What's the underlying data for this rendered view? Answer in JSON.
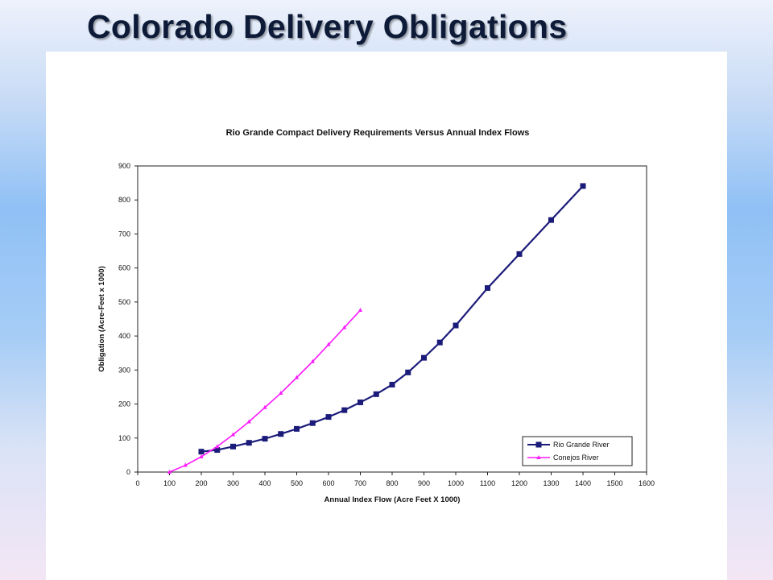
{
  "slide": {
    "title": "Colorado Delivery Obligations"
  },
  "colors": {
    "rio_grande": "#1b1b7a",
    "conejos": "#ff1aff"
  },
  "chart_data": {
    "type": "line",
    "title": "Rio Grande  Compact Delivery Requirements Versus Annual Index Flows",
    "xlabel": "Annual Index Flow (Acre Feet X 1000)",
    "ylabel": "Obligation (Acre-Feet x 1000)",
    "xlim": [
      0,
      1600
    ],
    "ylim": [
      0,
      900
    ],
    "xticks": [
      0,
      100,
      200,
      300,
      400,
      500,
      600,
      700,
      800,
      900,
      1000,
      1100,
      1200,
      1300,
      1400,
      1500,
      1600
    ],
    "yticks": [
      0,
      100,
      200,
      300,
      400,
      500,
      600,
      700,
      800,
      900
    ],
    "grid": false,
    "legend_position": "bottom-right",
    "series": [
      {
        "name": "Rio Grande River",
        "marker": "square",
        "color": "#1b1b7a",
        "x": [
          200,
          250,
          300,
          350,
          400,
          450,
          500,
          550,
          600,
          650,
          700,
          750,
          800,
          850,
          900,
          950,
          1000,
          1100,
          1200,
          1300,
          1400
        ],
        "y": [
          60,
          65,
          75,
          86,
          98,
          112,
          127,
          144,
          162,
          182,
          205,
          229,
          257,
          293,
          336,
          381,
          431,
          541,
          641,
          741,
          841
        ]
      },
      {
        "name": "Conejos River",
        "marker": "triangle",
        "color": "#ff1aff",
        "x": [
          100,
          150,
          200,
          250,
          300,
          350,
          400,
          450,
          500,
          550,
          600,
          650,
          700
        ],
        "y": [
          0,
          20,
          45,
          75,
          110,
          148,
          190,
          232,
          278,
          325,
          375,
          425,
          476
        ]
      }
    ]
  }
}
